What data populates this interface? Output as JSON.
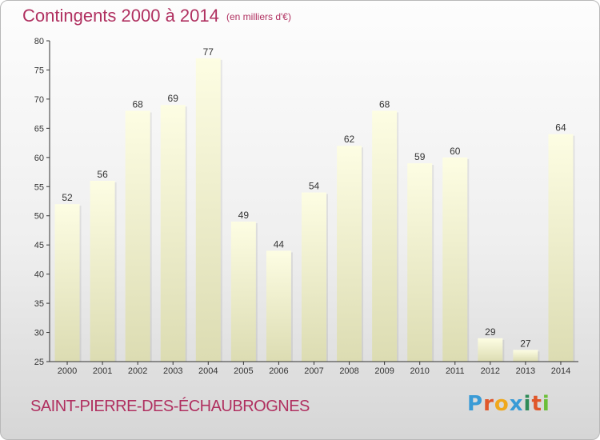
{
  "header": {
    "title": "Contingents 2000 à 2014",
    "subtitle": "(en milliers d'€)"
  },
  "footer": {
    "town": "SAINT-PIERRE-DES-ÉCHAUBROGNES",
    "logo_text": "Proxiti",
    "logo_colors": [
      "#3a9bd6",
      "#e0572a",
      "#f0a81c",
      "#3a9bd6",
      "#2e8b57",
      "#e0572a",
      "#6cbf3a"
    ]
  },
  "chart_data": {
    "type": "bar",
    "title": "Contingents 2000 à 2014",
    "subtitle": "(en milliers d'€)",
    "xlabel": "",
    "ylabel": "",
    "categories": [
      "2000",
      "2001",
      "2002",
      "2003",
      "2004",
      "2005",
      "2006",
      "2007",
      "2008",
      "2009",
      "2010",
      "2011",
      "2012",
      "2013",
      "2014"
    ],
    "values": [
      52,
      56,
      68,
      69,
      77,
      49,
      44,
      54,
      62,
      68,
      59,
      60,
      29,
      27,
      64
    ],
    "ylim": [
      25,
      80
    ],
    "yticks": [
      25,
      30,
      35,
      40,
      45,
      50,
      55,
      60,
      65,
      70,
      75,
      80
    ],
    "grid": false,
    "bar_color_top": "#fdfde3",
    "bar_color_bottom": "#dcdcb2",
    "axis_color": "#333333"
  }
}
